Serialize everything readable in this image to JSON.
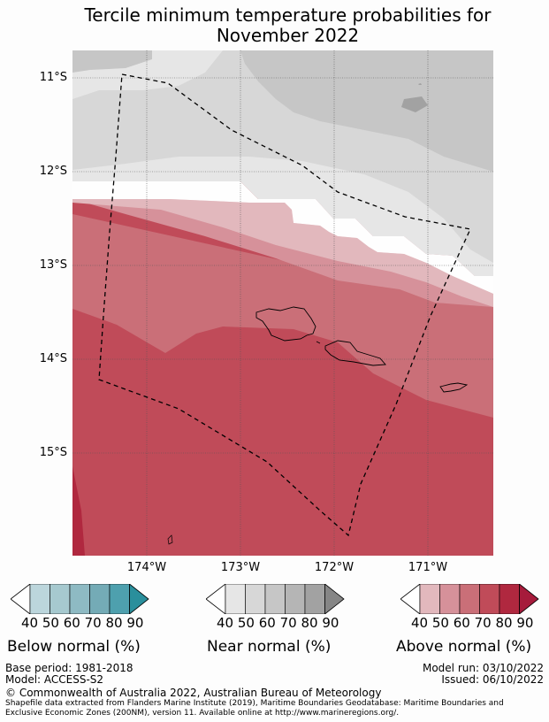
{
  "title_line1": "Tercile minimum temperature probabilities for",
  "title_line2": "November 2022",
  "lat_labels": [
    "11°S",
    "12°S",
    "13°S",
    "14°S",
    "15°S"
  ],
  "lon_labels": [
    "174°W",
    "173°W",
    "172°W",
    "171°W"
  ],
  "legends": {
    "below": {
      "label": "Below normal (%)",
      "ticks": [
        "40",
        "50",
        "60",
        "70",
        "80",
        "90"
      ],
      "colors": [
        "#bcd6dc",
        "#a6c9cf",
        "#8ebac3",
        "#74abb6",
        "#4ea0ae",
        "#2a8f9c"
      ]
    },
    "near": {
      "label": "Near normal (%)",
      "ticks": [
        "40",
        "50",
        "60",
        "70",
        "80",
        "90"
      ],
      "colors": [
        "#e6e6e6",
        "#d7d7d7",
        "#c6c6c6",
        "#b5b5b5",
        "#a2a2a2",
        "#868686"
      ]
    },
    "above": {
      "label": "Above normal (%)",
      "ticks": [
        "40",
        "50",
        "60",
        "70",
        "80",
        "90"
      ],
      "colors": [
        "#e2b8bd",
        "#d6919a",
        "#ca6f78",
        "#c04b59",
        "#b0283f",
        "#a61b3b"
      ]
    }
  },
  "footer": {
    "base_period": "Base period: 1981-2018",
    "model": "Model: ACCESS-S2",
    "model_run": "Model run: 03/10/2022",
    "issued": "Issued: 06/10/2022",
    "copyright": "© Commonwealth of Australia 2022, Australian Bureau of Meteorology",
    "shapefile_line1": "Shapefile data extracted from Flanders Marine Institute (2019), Maritime Boundaries Geodatabase: Maritime Boundaries and",
    "shapefile_line2": "Exclusive Economic Zones (200NM), version 11. Available online at http://www.marineregions.org/."
  }
}
